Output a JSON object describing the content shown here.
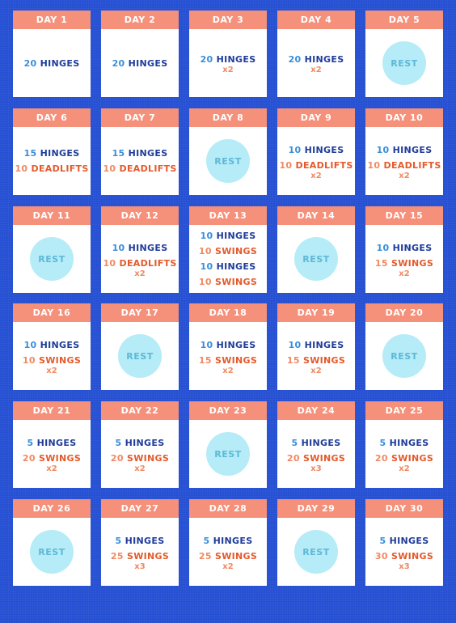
{
  "colors": {
    "background": "#2550d2",
    "header": "#f5907a",
    "hinges": "#1f3c9a",
    "hinges_count": "#3a8ed8",
    "orange_exercise": "#e35a2c",
    "orange_count": "#ef8a62",
    "rest_circle": "#b5ecf7",
    "rest_text": "#5eb8d8"
  },
  "days": [
    {
      "label": "DAY 1",
      "lines": [
        {
          "count": "20",
          "name": "HINGES",
          "tone": "blue"
        }
      ]
    },
    {
      "label": "DAY 2",
      "lines": [
        {
          "count": "20",
          "name": "HINGES",
          "tone": "blue"
        }
      ]
    },
    {
      "label": "DAY 3",
      "lines": [
        {
          "count": "20",
          "name": "HINGES",
          "tone": "blue"
        }
      ],
      "reps": "x2"
    },
    {
      "label": "DAY 4",
      "lines": [
        {
          "count": "20",
          "name": "HINGES",
          "tone": "blue"
        }
      ],
      "reps": "x2"
    },
    {
      "label": "DAY 5",
      "rest": "REST"
    },
    {
      "label": "DAY 6",
      "lines": [
        {
          "count": "15",
          "name": "HINGES",
          "tone": "blue"
        },
        {
          "count": "10",
          "name": "DEADLIFTS",
          "tone": "orange"
        }
      ]
    },
    {
      "label": "DAY 7",
      "lines": [
        {
          "count": "15",
          "name": "HINGES",
          "tone": "blue"
        },
        {
          "count": "10",
          "name": "DEADLIFTS",
          "tone": "orange"
        }
      ]
    },
    {
      "label": "DAY 8",
      "rest": "REST"
    },
    {
      "label": "DAY 9",
      "lines": [
        {
          "count": "10",
          "name": "HINGES",
          "tone": "blue"
        },
        {
          "count": "10",
          "name": "DEADLIFTS",
          "tone": "orange"
        }
      ],
      "reps": "x2"
    },
    {
      "label": "DAY 10",
      "lines": [
        {
          "count": "10",
          "name": "HINGES",
          "tone": "blue"
        },
        {
          "count": "10",
          "name": "DEADLIFTS",
          "tone": "orange"
        }
      ],
      "reps": "x2"
    },
    {
      "label": "DAY 11",
      "rest": "REST"
    },
    {
      "label": "DAY 12",
      "lines": [
        {
          "count": "10",
          "name": "HINGES",
          "tone": "blue"
        },
        {
          "count": "10",
          "name": "DEADLIFTS",
          "tone": "orange"
        }
      ],
      "reps": "x2"
    },
    {
      "label": "DAY 13",
      "lines": [
        {
          "count": "10",
          "name": "HINGES",
          "tone": "blue"
        },
        {
          "count": "10",
          "name": "SWINGS",
          "tone": "orange"
        },
        {
          "count": "10",
          "name": "HINGES",
          "tone": "blue"
        },
        {
          "count": "10",
          "name": "SWINGS",
          "tone": "orange"
        }
      ]
    },
    {
      "label": "DAY 14",
      "rest": "REST"
    },
    {
      "label": "DAY 15",
      "lines": [
        {
          "count": "10",
          "name": "HINGES",
          "tone": "blue"
        },
        {
          "count": "15",
          "name": "SWINGS",
          "tone": "orange"
        }
      ],
      "reps": "x2"
    },
    {
      "label": "DAY 16",
      "lines": [
        {
          "count": "10",
          "name": "HINGES",
          "tone": "blue"
        },
        {
          "count": "10",
          "name": "SWINGS",
          "tone": "orange"
        }
      ],
      "reps": "x2"
    },
    {
      "label": "DAY 17",
      "rest": "REST"
    },
    {
      "label": "DAY 18",
      "lines": [
        {
          "count": "10",
          "name": "HINGES",
          "tone": "blue"
        },
        {
          "count": "15",
          "name": "SWINGS",
          "tone": "orange"
        }
      ],
      "reps": "x2"
    },
    {
      "label": "DAY 19",
      "lines": [
        {
          "count": "10",
          "name": "HINGES",
          "tone": "blue"
        },
        {
          "count": "15",
          "name": "SWINGS",
          "tone": "orange"
        }
      ],
      "reps": "x2"
    },
    {
      "label": "DAY 20",
      "rest": "REST"
    },
    {
      "label": "DAY 21",
      "lines": [
        {
          "count": "5",
          "name": "HINGES",
          "tone": "blue"
        },
        {
          "count": "20",
          "name": "SWINGS",
          "tone": "orange"
        }
      ],
      "reps": "x2"
    },
    {
      "label": "DAY 22",
      "lines": [
        {
          "count": "5",
          "name": "HINGES",
          "tone": "blue"
        },
        {
          "count": "20",
          "name": "SWINGS",
          "tone": "orange"
        }
      ],
      "reps": "x2"
    },
    {
      "label": "DAY 23",
      "rest": "REST"
    },
    {
      "label": "DAY 24",
      "lines": [
        {
          "count": "5",
          "name": "HINGES",
          "tone": "blue"
        },
        {
          "count": "20",
          "name": "SWINGS",
          "tone": "orange"
        }
      ],
      "reps": "x3"
    },
    {
      "label": "DAY 25",
      "lines": [
        {
          "count": "5",
          "name": "HINGES",
          "tone": "blue"
        },
        {
          "count": "20",
          "name": "SWINGS",
          "tone": "orange"
        }
      ],
      "reps": "x2"
    },
    {
      "label": "DAY 26",
      "rest": "REST"
    },
    {
      "label": "DAY 27",
      "lines": [
        {
          "count": "5",
          "name": "HINGES",
          "tone": "blue"
        },
        {
          "count": "25",
          "name": "SWINGS",
          "tone": "orange"
        }
      ],
      "reps": "x3"
    },
    {
      "label": "DAY 28",
      "lines": [
        {
          "count": "5",
          "name": "HINGES",
          "tone": "blue"
        },
        {
          "count": "25",
          "name": "SWINGS",
          "tone": "orange"
        }
      ],
      "reps": "x2"
    },
    {
      "label": "DAY 29",
      "rest": "REST"
    },
    {
      "label": "DAY 30",
      "lines": [
        {
          "count": "5",
          "name": "HINGES",
          "tone": "blue"
        },
        {
          "count": "30",
          "name": "SWINGS",
          "tone": "orange"
        }
      ],
      "reps": "x3"
    }
  ]
}
